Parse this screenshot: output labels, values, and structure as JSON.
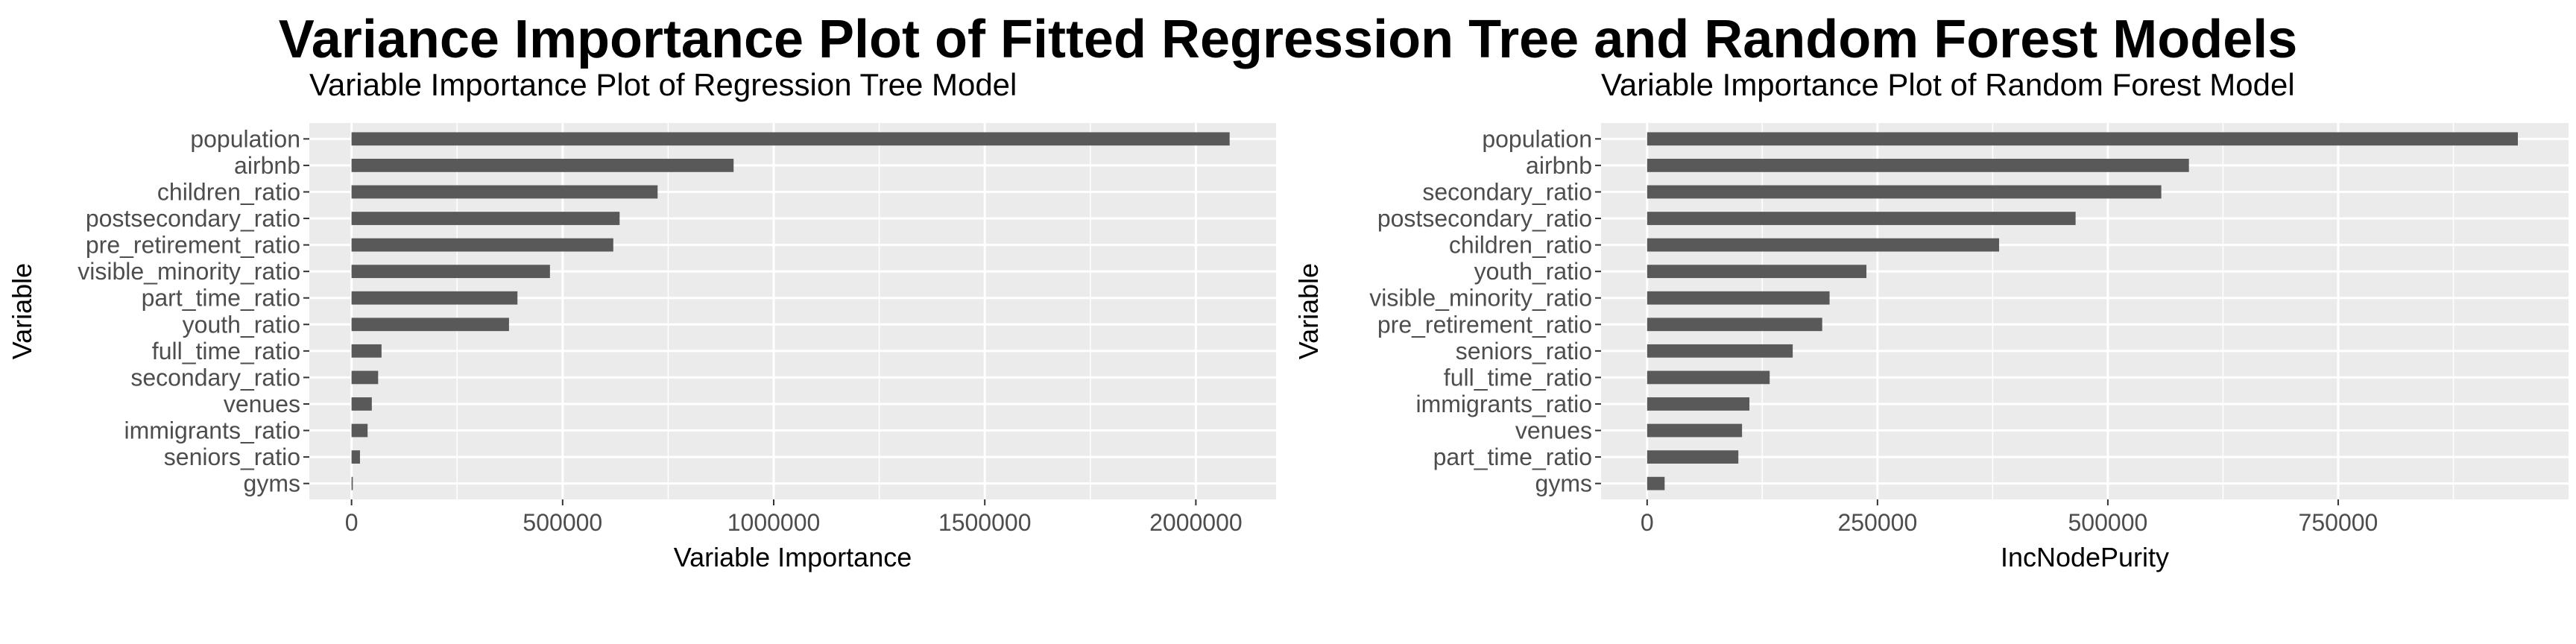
{
  "title": "Variance Importance Plot of Fitted Regression Tree and Random Forest Models",
  "chart_data": [
    {
      "type": "bar",
      "orientation": "horizontal",
      "title": "Variable Importance Plot of Regression Tree Model",
      "xlabel": "Variable Importance",
      "ylabel": "Variable",
      "xlim": [
        -100000,
        2190000
      ],
      "xticks": [
        0,
        500000,
        1000000,
        1500000,
        2000000
      ],
      "xtick_labels": [
        "0",
        "500000",
        "1000000",
        "1500000",
        "2000000"
      ],
      "grid": true,
      "categories": [
        "population",
        "airbnb",
        "children_ratio",
        "postsecondary_ratio",
        "pre_retirement_ratio",
        "visible_minority_ratio",
        "part_time_ratio",
        "youth_ratio",
        "full_time_ratio",
        "secondary_ratio",
        "venues",
        "immigrants_ratio",
        "seniors_ratio",
        "gyms"
      ],
      "values": [
        2080000,
        905000,
        725000,
        635000,
        620000,
        470000,
        393000,
        373000,
        71000,
        63000,
        48000,
        38000,
        20000,
        3000
      ]
    },
    {
      "type": "bar",
      "orientation": "horizontal",
      "title": "Variable Importance Plot of Random Forest Model",
      "xlabel": "IncNodePurity",
      "ylabel": "Variable",
      "xlim": [
        -50000,
        1000000
      ],
      "xticks": [
        0,
        250000,
        500000,
        750000
      ],
      "xtick_labels": [
        "0",
        "250000",
        "500000",
        "750000"
      ],
      "grid": true,
      "categories": [
        "population",
        "airbnb",
        "secondary_ratio",
        "postsecondary_ratio",
        "children_ratio",
        "youth_ratio",
        "visible_minority_ratio",
        "pre_retirement_ratio",
        "seniors_ratio",
        "full_time_ratio",
        "immigrants_ratio",
        "venues",
        "part_time_ratio",
        "gyms"
      ],
      "values": [
        945000,
        588000,
        558000,
        465000,
        382000,
        238000,
        198000,
        190000,
        158000,
        133000,
        111000,
        103000,
        99000,
        19000
      ]
    }
  ]
}
